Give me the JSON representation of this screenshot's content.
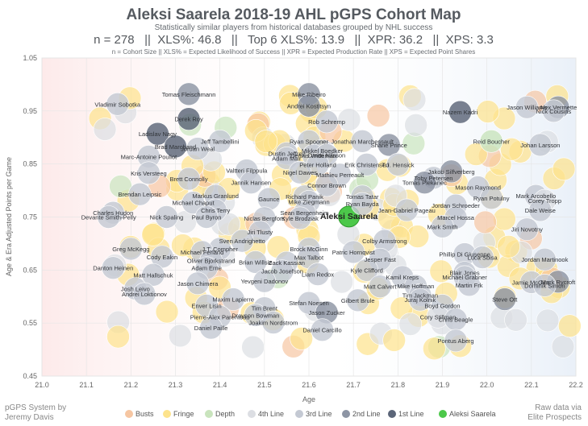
{
  "header": {
    "title": "Aleksi Saarela 2018-19 AHL pGPS Cohort Map",
    "subtitle": "Statistically similar players from historical databases grouped by NHL success",
    "metrics": "n = 278   ||  XLS%: 46.8   ||   Top 6 XLS%: 13.9   ||  XPR: 36.2   ||  XPS: 3.3",
    "definitions": "n = Cohort Size || XLS% = Expected Likelihood of Success || XPR = Expected Production Rate || XPS = Expected Point Shares"
  },
  "credits": {
    "left_line1": "pGPS System by",
    "left_line2": "Jeremy Davis",
    "right_line1": "Raw data via",
    "right_line2": "Elite Prospects"
  },
  "chart_data": {
    "type": "scatter",
    "xlabel": "Age",
    "ylabel": "Age & Era Adjusted Points per Game",
    "xlim": [
      21.0,
      22.2
    ],
    "ylim": [
      0.45,
      1.05
    ],
    "xticks": [
      "21.0",
      "21.1",
      "21.2",
      "21.3",
      "21.4",
      "21.5",
      "21.6",
      "21.7",
      "21.8",
      "21.9",
      "22.0",
      "22.1",
      "22.2"
    ],
    "yticks": [
      "0.45",
      "0.55",
      "0.65",
      "0.75",
      "0.85",
      "0.95",
      "1.05"
    ],
    "grid": true,
    "legend_position": "bottom",
    "categories": [
      {
        "name": "Busts",
        "color": "#f6c6a2"
      },
      {
        "name": "Fringe",
        "color": "#fde38c"
      },
      {
        "name": "Depth",
        "color": "#c9e4bd"
      },
      {
        "name": "4th Line",
        "color": "#dcdee3"
      },
      {
        "name": "3rd Line",
        "color": "#c4c9d3"
      },
      {
        "name": "2nd Line",
        "color": "#8d95a4"
      },
      {
        "name": "1st Line",
        "color": "#5b6578"
      },
      {
        "name": "Aleksi Saarela",
        "color": "#4cc84a"
      }
    ],
    "named_points": [
      {
        "name": "Aleksi Saarela",
        "x": 21.69,
        "y": 0.751,
        "cat": 7
      },
      {
        "name": "Vladimir Sobotka",
        "x": 21.17,
        "y": 0.963,
        "cat": 4
      },
      {
        "name": "Tomas Fleischmann",
        "x": 21.33,
        "y": 0.982,
        "cat": 5
      },
      {
        "name": "Mike Ribeiro",
        "x": 21.6,
        "y": 0.982,
        "cat": 5
      },
      {
        "name": "Andrei Kostitsyn",
        "x": 21.6,
        "y": 0.96,
        "cat": 5
      },
      {
        "name": "Jason Williams",
        "x": 22.09,
        "y": 0.957,
        "cat": 4
      },
      {
        "name": "Alex Vermette",
        "x": 22.16,
        "y": 0.957,
        "cat": 5
      },
      {
        "name": "Nick Cousins",
        "x": 22.15,
        "y": 0.95,
        "cat": 4
      },
      {
        "name": "Nazem Kadri",
        "x": 21.94,
        "y": 0.948,
        "cat": 6
      },
      {
        "name": "Derek Roy",
        "x": 21.33,
        "y": 0.935,
        "cat": 6
      },
      {
        "name": "Rob Schremp",
        "x": 21.64,
        "y": 0.93,
        "cat": 4
      },
      {
        "name": "Ladislav Nagy",
        "x": 21.26,
        "y": 0.907,
        "cat": 6
      },
      {
        "name": "Jeff Tambellini",
        "x": 21.4,
        "y": 0.893,
        "cat": 4
      },
      {
        "name": "Ryan Spooner",
        "x": 21.6,
        "y": 0.893,
        "cat": 4
      },
      {
        "name": "Jonathan Marchessault",
        "x": 21.72,
        "y": 0.893,
        "cat": 4
      },
      {
        "name": "Reid Boucher",
        "x": 22.01,
        "y": 0.893,
        "cat": 2
      },
      {
        "name": "Brad Marchand",
        "x": 21.3,
        "y": 0.883,
        "cat": 6
      },
      {
        "name": "Shane Prince",
        "x": 21.78,
        "y": 0.886,
        "cat": 5
      },
      {
        "name": "Johan Larsson",
        "x": 22.12,
        "y": 0.886,
        "cat": 4
      },
      {
        "name": "Jordan Weal",
        "x": 21.35,
        "y": 0.879,
        "cat": 4
      },
      {
        "name": "Dustin Jeffrey",
        "x": 21.55,
        "y": 0.87,
        "cat": 4
      },
      {
        "name": "Mikkel Boedker",
        "x": 21.63,
        "y": 0.875,
        "cat": 4
      },
      {
        "name": "Marc-Antoine Pouliot",
        "x": 21.24,
        "y": 0.864,
        "cat": 4
      },
      {
        "name": "Adam Mair",
        "x": 21.55,
        "y": 0.861,
        "cat": 4
      },
      {
        "name": "Dennis Wideman",
        "x": 21.61,
        "y": 0.866,
        "cat": 4
      },
      {
        "name": "Dmitri Nilsson",
        "x": 21.64,
        "y": 0.867,
        "cat": 4
      },
      {
        "name": "Peter Holland",
        "x": 21.62,
        "y": 0.849,
        "cat": 4
      },
      {
        "name": "Erik Christensen",
        "x": 21.73,
        "y": 0.849,
        "cat": 4
      },
      {
        "name": "T.J. Hensick",
        "x": 21.8,
        "y": 0.849,
        "cat": 4
      },
      {
        "name": "Nigel Dawes",
        "x": 21.58,
        "y": 0.834,
        "cat": 4
      },
      {
        "name": "Mathieu Perreault",
        "x": 21.67,
        "y": 0.83,
        "cat": 4
      },
      {
        "name": "Kris Versteeg",
        "x": 21.24,
        "y": 0.833,
        "cat": 4
      },
      {
        "name": "Valtteri Filppula",
        "x": 21.46,
        "y": 0.838,
        "cat": 4
      },
      {
        "name": "Jakob Silfverberg",
        "x": 21.92,
        "y": 0.836,
        "cat": 5
      },
      {
        "name": "Brett Connolly",
        "x": 21.33,
        "y": 0.822,
        "cat": 4
      },
      {
        "name": "Jannik Hansen",
        "x": 21.47,
        "y": 0.815,
        "cat": 4
      },
      {
        "name": "Toby Petersen",
        "x": 21.88,
        "y": 0.824,
        "cat": 4
      },
      {
        "name": "Tomas Plekanec",
        "x": 21.86,
        "y": 0.815,
        "cat": 5
      },
      {
        "name": "Connor Brown",
        "x": 21.64,
        "y": 0.81,
        "cat": 4
      },
      {
        "name": "Mason Raymond",
        "x": 21.98,
        "y": 0.806,
        "cat": 4
      },
      {
        "name": "Brendan Leipsic",
        "x": 21.22,
        "y": 0.793,
        "cat": 4
      },
      {
        "name": "Markus Granlund",
        "x": 21.39,
        "y": 0.79,
        "cat": 4
      },
      {
        "name": "Gaunce",
        "x": 21.51,
        "y": 0.784,
        "cat": 4
      },
      {
        "name": "Richard Panik",
        "x": 21.59,
        "y": 0.789,
        "cat": 4
      },
      {
        "name": "Tomas Tatar",
        "x": 21.72,
        "y": 0.789,
        "cat": 4
      },
      {
        "name": "Ryan Potulny",
        "x": 22.01,
        "y": 0.786,
        "cat": 4
      },
      {
        "name": "Mark Arcobello",
        "x": 22.11,
        "y": 0.79,
        "cat": 4
      },
      {
        "name": "Corey Tropp",
        "x": 22.13,
        "y": 0.781,
        "cat": 3
      },
      {
        "name": "Michael Chaput",
        "x": 21.34,
        "y": 0.777,
        "cat": 4
      },
      {
        "name": "Mike Ziegmann",
        "x": 21.6,
        "y": 0.779,
        "cat": 4
      },
      {
        "name": "Ryan Bayda",
        "x": 21.72,
        "y": 0.775,
        "cat": 4
      },
      {
        "name": "Jordan Schroeder",
        "x": 21.93,
        "y": 0.772,
        "cat": 4
      },
      {
        "name": "Chris Terry",
        "x": 21.39,
        "y": 0.763,
        "cat": 4
      },
      {
        "name": "Jean-Gabriel Pageau",
        "x": 21.82,
        "y": 0.763,
        "cat": 4
      },
      {
        "name": "Dale Weise",
        "x": 22.12,
        "y": 0.763,
        "cat": 4
      },
      {
        "name": "Charles Hudon",
        "x": 21.16,
        "y": 0.758,
        "cat": 4
      },
      {
        "name": "Sean Bergenheim",
        "x": 21.59,
        "y": 0.758,
        "cat": 4
      },
      {
        "name": "Devante Smith-Pelly",
        "x": 21.15,
        "y": 0.75,
        "cat": 4
      },
      {
        "name": "Nick Spaling",
        "x": 21.28,
        "y": 0.75,
        "cat": 4
      },
      {
        "name": "Paul Byron",
        "x": 21.37,
        "y": 0.75,
        "cat": 4
      },
      {
        "name": "Niclas Bergfors",
        "x": 21.5,
        "y": 0.748,
        "cat": 4
      },
      {
        "name": "Kyle Brodziak",
        "x": 21.58,
        "y": 0.748,
        "cat": 4
      },
      {
        "name": "Marcel Hossa",
        "x": 21.93,
        "y": 0.749,
        "cat": 4
      },
      {
        "name": "Mark Smith",
        "x": 21.9,
        "y": 0.732,
        "cat": 4
      },
      {
        "name": "Jiri Tlusty",
        "x": 21.49,
        "y": 0.722,
        "cat": 4
      },
      {
        "name": "Jiri Novotny",
        "x": 22.09,
        "y": 0.727,
        "cat": 4
      },
      {
        "name": "Colby Armstrong",
        "x": 21.77,
        "y": 0.705,
        "cat": 4
      },
      {
        "name": "Sven Andrighetto",
        "x": 21.45,
        "y": 0.705,
        "cat": 4
      },
      {
        "name": "Greg McKegg",
        "x": 21.2,
        "y": 0.69,
        "cat": 4
      },
      {
        "name": "J.T. Compher",
        "x": 21.4,
        "y": 0.69,
        "cat": 4
      },
      {
        "name": "Brock McGinn",
        "x": 21.6,
        "y": 0.69,
        "cat": 4
      },
      {
        "name": "Patric Hornqvist",
        "x": 21.7,
        "y": 0.684,
        "cat": 4
      },
      {
        "name": "Michael Ferland",
        "x": 21.36,
        "y": 0.684,
        "cat": 4
      },
      {
        "name": "Phillip Di Giuseppe",
        "x": 21.95,
        "y": 0.68,
        "cat": 4
      },
      {
        "name": "Cody Eakin",
        "x": 21.27,
        "y": 0.675,
        "cat": 4
      },
      {
        "name": "Max Talbot",
        "x": 21.6,
        "y": 0.674,
        "cat": 4
      },
      {
        "name": "Luca Sbisa",
        "x": 21.99,
        "y": 0.674,
        "cat": 4
      },
      {
        "name": "Jesper Fast",
        "x": 21.76,
        "y": 0.67,
        "cat": 4
      },
      {
        "name": "Jordan Martinook",
        "x": 22.13,
        "y": 0.67,
        "cat": 4
      },
      {
        "name": "Oliver Bjorkstrand",
        "x": 21.38,
        "y": 0.668,
        "cat": 4
      },
      {
        "name": "Brian Willsie",
        "x": 21.48,
        "y": 0.665,
        "cat": 4
      },
      {
        "name": "Zack Kassian",
        "x": 21.55,
        "y": 0.664,
        "cat": 4
      },
      {
        "name": "Danton Heinen",
        "x": 21.16,
        "y": 0.654,
        "cat": 4
      },
      {
        "name": "Adam Erne",
        "x": 21.37,
        "y": 0.654,
        "cat": 4
      },
      {
        "name": "Jacob Josefson",
        "x": 21.54,
        "y": 0.648,
        "cat": 4
      },
      {
        "name": "Liam Redox",
        "x": 21.62,
        "y": 0.642,
        "cat": 4
      },
      {
        "name": "Kyle Clifford",
        "x": 21.73,
        "y": 0.65,
        "cat": 4
      },
      {
        "name": "Matt Hallschuk",
        "x": 21.25,
        "y": 0.641,
        "cat": 4
      },
      {
        "name": "Kamil Kreps",
        "x": 21.81,
        "y": 0.637,
        "cat": 4
      },
      {
        "name": "Blair Jones",
        "x": 21.95,
        "y": 0.645,
        "cat": 4
      },
      {
        "name": "Michael Grabner",
        "x": 21.95,
        "y": 0.637,
        "cat": 4
      },
      {
        "name": "Yevgeni Dadonov",
        "x": 21.5,
        "y": 0.629,
        "cat": 4
      },
      {
        "name": "Jason Chimera",
        "x": 21.35,
        "y": 0.625,
        "cat": 4
      },
      {
        "name": "Matt Calvert",
        "x": 21.76,
        "y": 0.619,
        "cat": 4
      },
      {
        "name": "Mike Hoffman",
        "x": 21.84,
        "y": 0.62,
        "cat": 4
      },
      {
        "name": "Martin Frk",
        "x": 21.96,
        "y": 0.622,
        "cat": 4
      },
      {
        "name": "Jamie McGinn",
        "x": 22.1,
        "y": 0.627,
        "cat": 4
      },
      {
        "name": "Mark Rycroft",
        "x": 22.16,
        "y": 0.628,
        "cat": 5
      },
      {
        "name": "Dominik Simon",
        "x": 22.13,
        "y": 0.621,
        "cat": 4
      },
      {
        "name": "Josh Leivo",
        "x": 21.21,
        "y": 0.615,
        "cat": 4
      },
      {
        "name": "Andrei Loktionov",
        "x": 21.23,
        "y": 0.605,
        "cat": 4
      },
      {
        "name": "Tim Jackman",
        "x": 21.85,
        "y": 0.603,
        "cat": 4
      },
      {
        "name": "Juraj Kolnik",
        "x": 21.85,
        "y": 0.594,
        "cat": 4
      },
      {
        "name": "Steve Ott",
        "x": 22.04,
        "y": 0.595,
        "cat": 5
      },
      {
        "name": "Maxim Lapierre",
        "x": 21.43,
        "y": 0.595,
        "cat": 4
      },
      {
        "name": "Gilbert Brule",
        "x": 21.71,
        "y": 0.593,
        "cat": 4
      },
      {
        "name": "Stefan Noesen",
        "x": 21.6,
        "y": 0.588,
        "cat": 4
      },
      {
        "name": "Enver Lisin",
        "x": 21.37,
        "y": 0.583,
        "cat": 4
      },
      {
        "name": "Tim Brent",
        "x": 21.5,
        "y": 0.578,
        "cat": 4
      },
      {
        "name": "Boyd Gordon",
        "x": 21.9,
        "y": 0.583,
        "cat": 4
      },
      {
        "name": "Jason Zucker",
        "x": 21.64,
        "y": 0.57,
        "cat": 5
      },
      {
        "name": "Drayson Bowman",
        "x": 21.48,
        "y": 0.565,
        "cat": 4
      },
      {
        "name": "Pierre-Alex Parenteau",
        "x": 21.4,
        "y": 0.562,
        "cat": 4
      },
      {
        "name": "Cory Stillman",
        "x": 21.89,
        "y": 0.562,
        "cat": 3
      },
      {
        "name": "Chris Beagle",
        "x": 21.93,
        "y": 0.557,
        "cat": 4
      },
      {
        "name": "Joakim Nordstrom",
        "x": 21.52,
        "y": 0.551,
        "cat": 4
      },
      {
        "name": "Daniel Paille",
        "x": 21.38,
        "y": 0.541,
        "cat": 4
      },
      {
        "name": "Daniel Carcillo",
        "x": 21.63,
        "y": 0.537,
        "cat": 4
      },
      {
        "name": "Pontus Aberg",
        "x": 21.93,
        "y": 0.517,
        "cat": 4
      }
    ]
  }
}
